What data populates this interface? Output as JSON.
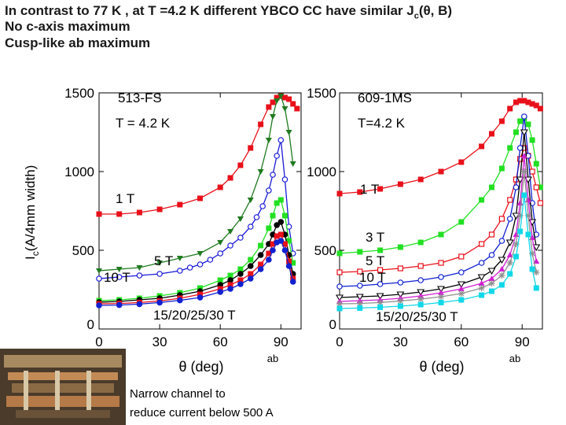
{
  "title": {
    "line1_prefix": "In contrast to 77 K , at T =4.2 K  different YBCO CC have similar J",
    "line1_sub": "c",
    "line1_suffix": "(θ, B)",
    "line2": "No c-axis maximum",
    "line3": "Cusp-like ab maximum"
  },
  "caption": {
    "line1": "Narrow channel to",
    "line2": " reduce current below 500 A"
  },
  "colors": {
    "red": "#e8101a",
    "green": "#22e022",
    "blue": "#1020d0",
    "dkgreen": "#207a20",
    "black": "#000000",
    "magenta": "#d020d0",
    "cyan": "#10d8e8",
    "gray": "#909090",
    "nblue": "#1a1ad8"
  },
  "chart_data": [
    {
      "type": "line",
      "title": "513-FS",
      "subtitle": "T = 4.2 K",
      "xlabel": "θ (deg)",
      "ylabel_main": "I",
      "ylabel_sub": "c",
      "ylabel_rest": "(A/4mm width)",
      "xlim": [
        0,
        100
      ],
      "ylim": [
        0,
        1500
      ],
      "xticks": [
        0,
        30,
        60,
        90
      ],
      "yticks": [
        0,
        500,
        1000,
        1500
      ],
      "xtick_labels": [
        "0",
        "30",
        "60",
        "90"
      ],
      "ytick_labels": [
        "0",
        "500",
        "1000",
        "1500"
      ],
      "ab_label": "ab",
      "annotations": [
        "1 T",
        "5 T",
        "10 T",
        "15/20/25/30 T"
      ],
      "series": [
        {
          "name": "1 T",
          "color": "red",
          "marker": "square",
          "x": [
            0,
            10,
            20,
            30,
            40,
            50,
            60,
            65,
            70,
            75,
            80,
            84,
            86,
            88,
            90,
            92,
            94,
            96,
            98
          ],
          "y": [
            730,
            730,
            740,
            760,
            790,
            830,
            900,
            960,
            1040,
            1150,
            1300,
            1410,
            1440,
            1470,
            1480,
            1470,
            1460,
            1430,
            1400
          ]
        },
        {
          "name": "5 T",
          "color": "dkgreen",
          "marker": "triangle-down",
          "x": [
            0,
            10,
            20,
            30,
            40,
            50,
            60,
            65,
            70,
            75,
            80,
            84,
            86,
            88,
            90,
            92,
            94,
            96
          ],
          "y": [
            370,
            380,
            390,
            420,
            450,
            480,
            550,
            620,
            700,
            820,
            1000,
            1200,
            1350,
            1450,
            1480,
            1400,
            1250,
            1050
          ]
        },
        {
          "name": "10 T",
          "color": "nblue",
          "marker": "circle-open",
          "x": [
            0,
            10,
            20,
            30,
            40,
            45,
            50,
            55,
            60,
            65,
            70,
            75,
            78,
            81,
            84,
            86,
            88,
            90,
            92,
            94,
            96
          ],
          "y": [
            320,
            330,
            340,
            350,
            370,
            390,
            410,
            440,
            480,
            530,
            580,
            650,
            710,
            780,
            880,
            980,
            1100,
            1200,
            950,
            650,
            480
          ]
        },
        {
          "name": "15 T",
          "color": "green",
          "marker": "square",
          "x": [
            0,
            10,
            20,
            30,
            40,
            50,
            60,
            65,
            70,
            75,
            80,
            84,
            86,
            88,
            90,
            92,
            94,
            96
          ],
          "y": [
            180,
            185,
            195,
            210,
            230,
            260,
            310,
            340,
            380,
            440,
            530,
            640,
            720,
            800,
            820,
            720,
            560,
            420
          ]
        },
        {
          "name": "20 T",
          "color": "black",
          "marker": "circle",
          "x": [
            0,
            10,
            20,
            30,
            40,
            50,
            60,
            65,
            70,
            75,
            80,
            84,
            86,
            88,
            90,
            92,
            94,
            96
          ],
          "y": [
            170,
            175,
            185,
            195,
            215,
            240,
            280,
            310,
            350,
            400,
            470,
            540,
            600,
            660,
            680,
            600,
            470,
            350
          ]
        },
        {
          "name": "25 T",
          "color": "red",
          "marker": "square",
          "x": [
            0,
            10,
            20,
            30,
            40,
            50,
            60,
            65,
            70,
            75,
            80,
            84,
            86,
            88,
            90,
            92,
            94,
            96
          ],
          "y": [
            160,
            162,
            168,
            178,
            195,
            220,
            255,
            280,
            310,
            350,
            410,
            480,
            540,
            590,
            600,
            540,
            430,
            320
          ]
        },
        {
          "name": "30 T",
          "color": "blue",
          "marker": "circle",
          "x": [
            0,
            10,
            20,
            30,
            40,
            50,
            60,
            65,
            70,
            75,
            80,
            84,
            86,
            88,
            90,
            92,
            94,
            96
          ],
          "y": [
            150,
            152,
            158,
            168,
            182,
            200,
            235,
            255,
            285,
            320,
            380,
            440,
            500,
            550,
            560,
            500,
            400,
            300
          ]
        }
      ]
    },
    {
      "type": "line",
      "title": "609-1MS",
      "subtitle": "T=4.2 K",
      "xlabel": "θ (deg)",
      "xlim": [
        0,
        100
      ],
      "ylim": [
        0,
        1500
      ],
      "xticks": [
        0,
        30,
        60,
        90
      ],
      "yticks": [
        0,
        500,
        1000,
        1500
      ],
      "xtick_labels": [
        "0",
        "30",
        "60",
        "90"
      ],
      "ytick_labels": [
        "0",
        "500",
        "1000",
        "1500"
      ],
      "ab_label": "ab",
      "annotations": [
        "1 T",
        "3 T",
        "5 T",
        "10 T",
        "15/20/25/30 T"
      ],
      "series": [
        {
          "name": "1 T",
          "color": "red",
          "marker": "square",
          "x": [
            0,
            10,
            20,
            30,
            40,
            50,
            60,
            70,
            75,
            80,
            84,
            87,
            89,
            91,
            93,
            95,
            97,
            99
          ],
          "y": [
            860,
            870,
            890,
            920,
            950,
            1000,
            1060,
            1160,
            1240,
            1320,
            1400,
            1440,
            1450,
            1450,
            1440,
            1430,
            1420,
            1400
          ]
        },
        {
          "name": "3 T",
          "color": "green",
          "marker": "square",
          "x": [
            0,
            10,
            20,
            30,
            40,
            50,
            60,
            70,
            75,
            80,
            84,
            87,
            89,
            91,
            93,
            95,
            97,
            99
          ],
          "y": [
            480,
            490,
            500,
            520,
            550,
            600,
            680,
            820,
            900,
            1020,
            1150,
            1250,
            1320,
            1340,
            1300,
            1200,
            1050,
            900
          ]
        },
        {
          "name": "5 T",
          "color": "red",
          "marker": "square-open",
          "x": [
            0,
            10,
            20,
            30,
            40,
            50,
            60,
            70,
            75,
            80,
            84,
            87,
            89,
            91,
            93,
            95,
            97,
            99
          ],
          "y": [
            360,
            365,
            375,
            385,
            400,
            420,
            460,
            540,
            600,
            700,
            820,
            950,
            1080,
            1150,
            1100,
            1000,
            900,
            800
          ]
        },
        {
          "name": "10 T",
          "color": "blue",
          "marker": "circle-open",
          "x": [
            0,
            10,
            20,
            30,
            40,
            50,
            60,
            70,
            75,
            80,
            84,
            87,
            89,
            91,
            93,
            95,
            97
          ],
          "y": [
            270,
            275,
            285,
            295,
            310,
            330,
            360,
            420,
            470,
            560,
            700,
            900,
            1150,
            1350,
            1100,
            800,
            600
          ]
        },
        {
          "name": "15 T",
          "color": "black",
          "marker": "triangle-down-open",
          "x": [
            0,
            10,
            20,
            30,
            40,
            50,
            60,
            70,
            75,
            80,
            84,
            87,
            89,
            91,
            93,
            95,
            97
          ],
          "y": [
            200,
            205,
            210,
            220,
            235,
            255,
            285,
            330,
            370,
            440,
            550,
            720,
            950,
            1250,
            950,
            680,
            520
          ]
        },
        {
          "name": "20 T",
          "color": "magenta",
          "marker": "triangle",
          "x": [
            0,
            10,
            20,
            30,
            40,
            50,
            60,
            70,
            75,
            80,
            84,
            87,
            89,
            91,
            93,
            95,
            97
          ],
          "y": [
            175,
            180,
            185,
            195,
            210,
            230,
            255,
            290,
            320,
            380,
            470,
            600,
            800,
            1100,
            820,
            580,
            430
          ]
        },
        {
          "name": "25 T",
          "color": "gray",
          "marker": "star",
          "x": [
            0,
            10,
            20,
            30,
            40,
            50,
            60,
            70,
            75,
            80,
            84,
            87,
            89,
            91,
            93,
            95,
            97
          ],
          "y": [
            160,
            162,
            168,
            178,
            190,
            205,
            225,
            260,
            290,
            340,
            420,
            540,
            720,
            1000,
            720,
            480,
            360
          ]
        },
        {
          "name": "30 T",
          "color": "cyan",
          "marker": "square",
          "x": [
            0,
            10,
            20,
            30,
            40,
            50,
            60,
            70,
            75,
            80,
            84,
            87,
            89,
            91,
            93,
            95,
            97
          ],
          "y": [
            130,
            133,
            138,
            145,
            155,
            168,
            185,
            215,
            240,
            280,
            350,
            460,
            620,
            850,
            600,
            380,
            260
          ]
        }
      ]
    }
  ]
}
